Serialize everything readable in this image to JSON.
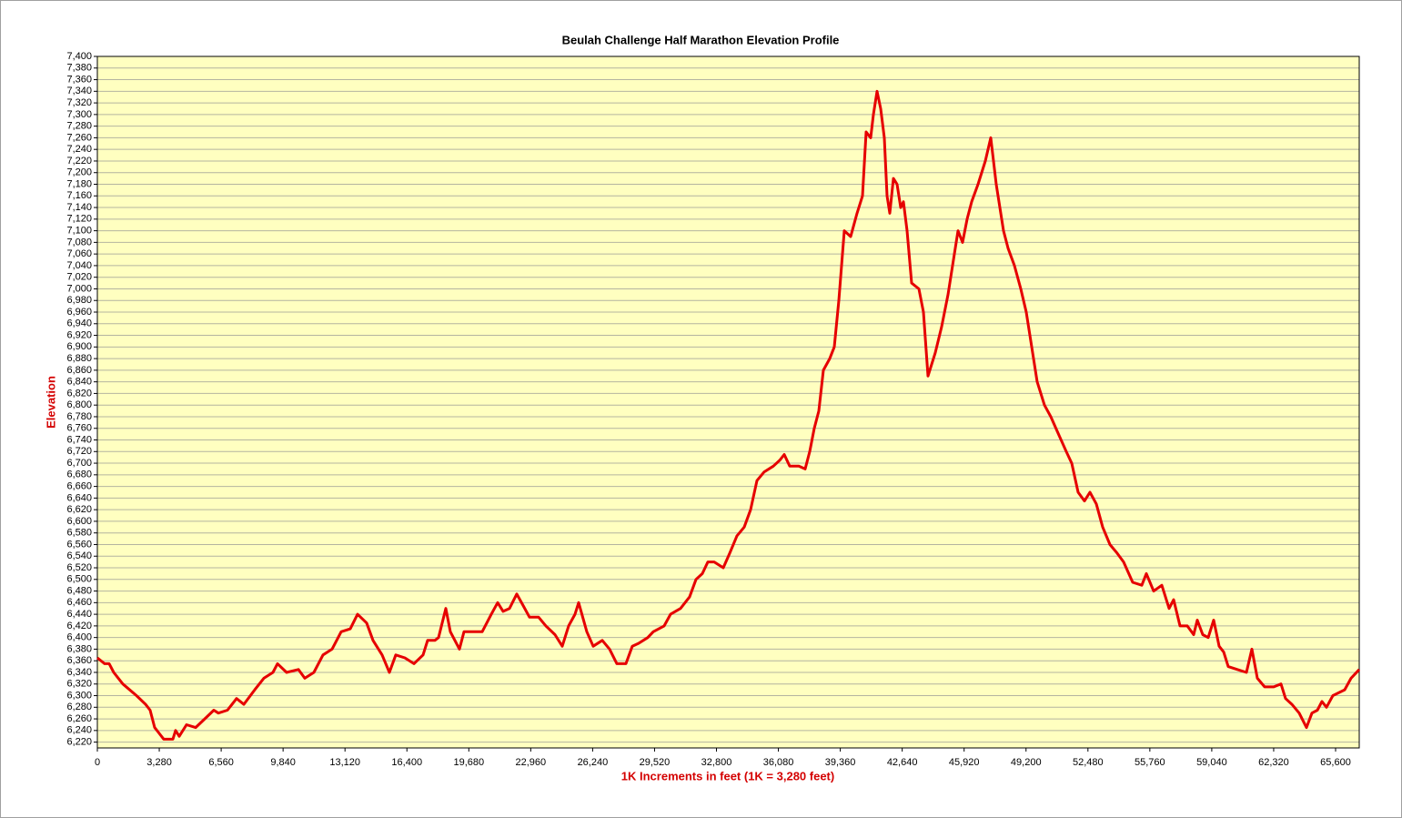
{
  "chart_data": {
    "type": "line",
    "title": "Beulah Challenge Half Marathon Elevation Profile",
    "x_label": "1K Increments in feet (1K = 3,280 feet)",
    "y_label": "Elevation",
    "color": "#e60000",
    "grid": true,
    "xlim": [
      0,
      66853
    ],
    "ylim": [
      6210,
      7400
    ],
    "xticks": [
      0,
      {
        "value": 3280,
        "label": "3,280"
      },
      {
        "value": 6560,
        "label": "6,560"
      },
      {
        "value": 9840,
        "label": "9,840"
      },
      {
        "value": 13120,
        "label": "13,120"
      },
      {
        "value": 16400,
        "label": "16,400"
      },
      {
        "value": 19680,
        "label": "19,680"
      },
      {
        "value": 22960,
        "label": "22,960"
      },
      {
        "value": 26240,
        "label": "26,240"
      },
      {
        "value": 29520,
        "label": "29,520"
      },
      {
        "value": 32800,
        "label": "32,800"
      },
      {
        "value": 36080,
        "label": "36,080"
      },
      {
        "value": 39360,
        "label": "39,360"
      },
      {
        "value": 42640,
        "label": "42,640"
      },
      {
        "value": 45920,
        "label": "45,920"
      },
      {
        "value": 49200,
        "label": "49,200"
      },
      {
        "value": 52480,
        "label": "52,480"
      },
      {
        "value": 55760,
        "label": "55,760"
      },
      {
        "value": 59040,
        "label": "59,040"
      },
      {
        "value": 62320,
        "label": "62,320"
      },
      {
        "value": 65600,
        "label": "65,600"
      }
    ],
    "yticks": [
      {
        "value": 6220,
        "label": "6,220"
      },
      {
        "value": 6240,
        "label": "6,240"
      },
      {
        "value": 6260,
        "label": "6,260"
      },
      {
        "value": 6280,
        "label": "6,280"
      },
      {
        "value": 6300,
        "label": "6,300"
      },
      {
        "value": 6320,
        "label": "6,320"
      },
      {
        "value": 6340,
        "label": "6,340"
      },
      {
        "value": 6360,
        "label": "6,360"
      },
      {
        "value": 6380,
        "label": "6,380"
      },
      {
        "value": 6400,
        "label": "6,400"
      },
      {
        "value": 6420,
        "label": "6,420"
      },
      {
        "value": 6440,
        "label": "6,440"
      },
      {
        "value": 6460,
        "label": "6,460"
      },
      {
        "value": 6480,
        "label": "6,480"
      },
      {
        "value": 6500,
        "label": "6,500"
      },
      {
        "value": 6520,
        "label": "6,520"
      },
      {
        "value": 6540,
        "label": "6,540"
      },
      {
        "value": 6560,
        "label": "6,560"
      },
      {
        "value": 6580,
        "label": "6,580"
      },
      {
        "value": 6600,
        "label": "6,600"
      },
      {
        "value": 6620,
        "label": "6,620"
      },
      {
        "value": 6640,
        "label": "6,640"
      },
      {
        "value": 6660,
        "label": "6,660"
      },
      {
        "value": 6680,
        "label": "6,680"
      },
      {
        "value": 6700,
        "label": "6,700"
      },
      {
        "value": 6720,
        "label": "6,720"
      },
      {
        "value": 6740,
        "label": "6,740"
      },
      {
        "value": 6760,
        "label": "6,760"
      },
      {
        "value": 6780,
        "label": "6,780"
      },
      {
        "value": 6800,
        "label": "6,800"
      },
      {
        "value": 6820,
        "label": "6,820"
      },
      {
        "value": 6840,
        "label": "6,840"
      },
      {
        "value": 6860,
        "label": "6,860"
      },
      {
        "value": 6880,
        "label": "6,880"
      },
      {
        "value": 6900,
        "label": "6,900"
      },
      {
        "value": 6920,
        "label": "6,920"
      },
      {
        "value": 6940,
        "label": "6,940"
      },
      {
        "value": 6960,
        "label": "6,960"
      },
      {
        "value": 6980,
        "label": "6,980"
      },
      {
        "value": 7000,
        "label": "7,000"
      },
      {
        "value": 7020,
        "label": "7,020"
      },
      {
        "value": 7040,
        "label": "7,040"
      },
      {
        "value": 7060,
        "label": "7,060"
      },
      {
        "value": 7080,
        "label": "7,080"
      },
      {
        "value": 7100,
        "label": "7,100"
      },
      {
        "value": 7120,
        "label": "7,120"
      },
      {
        "value": 7140,
        "label": "7,140"
      },
      {
        "value": 7160,
        "label": "7,160"
      },
      {
        "value": 7180,
        "label": "7,180"
      },
      {
        "value": 7200,
        "label": "7,200"
      },
      {
        "value": 7220,
        "label": "7,220"
      },
      {
        "value": 7240,
        "label": "7,240"
      },
      {
        "value": 7260,
        "label": "7,260"
      },
      {
        "value": 7280,
        "label": "7,280"
      },
      {
        "value": 7300,
        "label": "7,300"
      },
      {
        "value": 7320,
        "label": "7,320"
      },
      {
        "value": 7340,
        "label": "7,340"
      },
      {
        "value": 7360,
        "label": "7,360"
      },
      {
        "value": 7380,
        "label": "7,380"
      },
      {
        "value": 7400,
        "label": "7,400"
      }
    ],
    "x": [
      0,
      386,
      627,
      868,
      1350,
      2073,
      2555,
      2796,
      3037,
      3278,
      3519,
      4001,
      4145,
      4338,
      4724,
      5206,
      5688,
      6170,
      6411,
      6893,
      7375,
      7760,
      8339,
      8821,
      9303,
      9544,
      10026,
      10652,
      10990,
      11472,
      11954,
      12436,
      12918,
      13400,
      13785,
      14267,
      14605,
      15087,
      15472,
      15810,
      16292,
      16774,
      17256,
      17497,
      17882,
      18075,
      18461,
      18702,
      19184,
      19425,
      19907,
      20389,
      20871,
      21208,
      21497,
      21835,
      22220,
      22558,
      22895,
      23377,
      23763,
      24245,
      24630,
      24968,
      25305,
      25498,
      25932,
      26269,
      26751,
      27137,
      27522,
      28004,
      28342,
      28679,
      29161,
      29450,
      30029,
      30366,
      30896,
      31378,
      31716,
      32053,
      32342,
      32680,
      33162,
      33499,
      33885,
      34270,
      34608,
      34945,
      35331,
      35813,
      36150,
      36391,
      36680,
      37162,
      37500,
      37741,
      37982,
      38223,
      38464,
      38801,
      39042,
      39283,
      39572,
      39910,
      40247,
      40536,
      40729,
      40970,
      41115,
      41307,
      41500,
      41693,
      41838,
      41982,
      42175,
      42368,
      42561,
      42705,
      42898,
      43139,
      43525,
      43766,
      44007,
      44392,
      44730,
      45067,
      45308,
      45597,
      45838,
      46079,
      46320,
      46658,
      47043,
      47332,
      47622,
      48007,
      48248,
      48586,
      48923,
      49212,
      49453,
      49791,
      50176,
      50514,
      50851,
      51333,
      51622,
      51960,
      52297,
      52586,
      52924,
      53261,
      53647,
      54032,
      54370,
      54852,
      55334,
      55575,
      55960,
      56394,
      56780,
      57021,
      57358,
      57744,
      58081,
      58274,
      58563,
      58852,
      59141,
      59431,
      59672,
      59913,
      60395,
      60877,
      61166,
      61455,
      61841,
      62323,
      62708,
      62949,
      63287,
      63672,
      64058,
      64347,
      64636,
      64877,
      65118,
      65456,
      66082,
      66420,
      66853
    ],
    "values": [
      6365,
      6355,
      6355,
      6340,
      6320,
      6300,
      6285,
      6275,
      6245,
      6235,
      6225,
      6225,
      6240,
      6230,
      6250,
      6245,
      6260,
      6275,
      6270,
      6275,
      6295,
      6285,
      6310,
      6330,
      6340,
      6355,
      6340,
      6345,
      6330,
      6340,
      6370,
      6380,
      6410,
      6415,
      6440,
      6425,
      6395,
      6370,
      6340,
      6370,
      6365,
      6355,
      6370,
      6395,
      6395,
      6400,
      6450,
      6410,
      6380,
      6410,
      6410,
      6410,
      6440,
      6460,
      6445,
      6450,
      6475,
      6455,
      6435,
      6435,
      6420,
      6405,
      6385,
      6420,
      6440,
      6460,
      6410,
      6385,
      6395,
      6380,
      6355,
      6355,
      6385,
      6390,
      6400,
      6410,
      6420,
      6440,
      6450,
      6470,
      6500,
      6510,
      6530,
      6530,
      6520,
      6545,
      6575,
      6590,
      6620,
      6670,
      6685,
      6695,
      6705,
      6715,
      6695,
      6695,
      6690,
      6720,
      6760,
      6790,
      6860,
      6880,
      6900,
      6980,
      7100,
      7090,
      7130,
      7160,
      7270,
      7260,
      7300,
      7340,
      7310,
      7260,
      7160,
      7130,
      7190,
      7180,
      7140,
      7150,
      7100,
      7010,
      7000,
      6960,
      6850,
      6890,
      6935,
      6990,
      7040,
      7100,
      7080,
      7120,
      7150,
      7180,
      7220,
      7260,
      7180,
      7100,
      7070,
      7040,
      7000,
      6960,
      6910,
      6840,
      6800,
      6780,
      6755,
      6720,
      6700,
      6650,
      6635,
      6650,
      6630,
      6590,
      6560,
      6545,
      6530,
      6495,
      6490,
      6510,
      6480,
      6490,
      6450,
      6465,
      6420,
      6420,
      6405,
      6430,
      6405,
      6400,
      6430,
      6385,
      6375,
      6350,
      6345,
      6340,
      6380,
      6330,
      6315,
      6315,
      6320,
      6295,
      6285,
      6270,
      6245,
      6270,
      6275,
      6290,
      6280,
      6300,
      6310,
      6330,
      6345
    ]
  }
}
